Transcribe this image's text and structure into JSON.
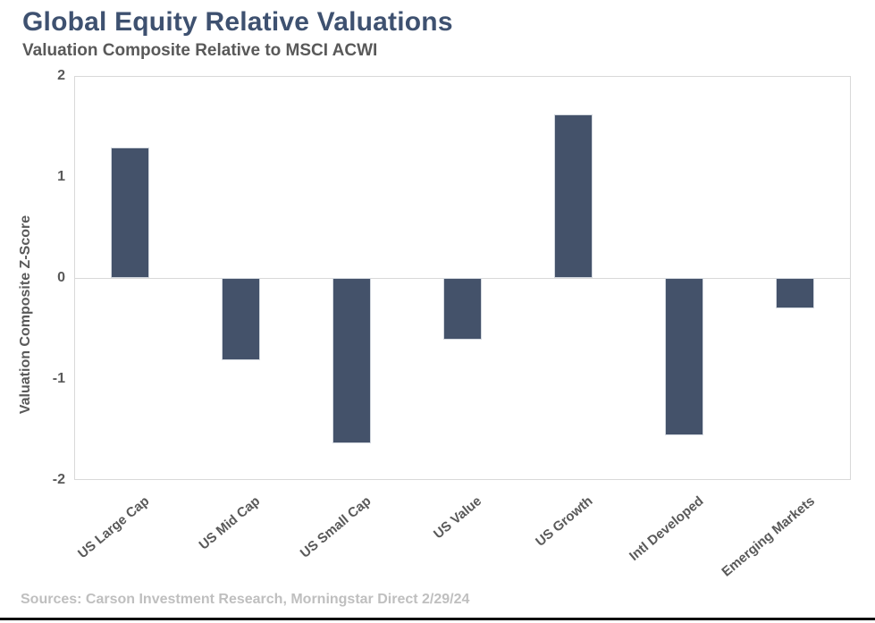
{
  "header": {
    "title": "Global Equity Relative Valuations",
    "subtitle": "Valuation Composite Relative to MSCI ACWI"
  },
  "footer": {
    "source": "Sources: Carson Investment Research, Morningstar Direct 2/29/24"
  },
  "chart_data": {
    "type": "bar",
    "title": "Global Equity Relative Valuations",
    "subtitle": "Valuation Composite Relative to MSCI ACWI",
    "categories": [
      "US Large Cap",
      "US Mid Cap",
      "US Small Cap",
      "US Value",
      "US Growth",
      "Intl Developed",
      "Emerging Markets"
    ],
    "values": [
      1.29,
      -0.81,
      -1.64,
      -0.61,
      1.62,
      -1.56,
      -0.3
    ],
    "xlabel": "",
    "ylabel": "Valuation Composite Z-Score",
    "ylim": [
      -2,
      2
    ],
    "yticks": [
      2,
      1,
      0,
      -1,
      -2
    ],
    "grid": "zero-line-only",
    "legend": "none",
    "bar_color": "#44526a",
    "axis_border_color": "#d9d9d9",
    "title_color": "#3e5170",
    "axis_text_color": "#595959",
    "source_text_color": "#bfbfbf"
  }
}
